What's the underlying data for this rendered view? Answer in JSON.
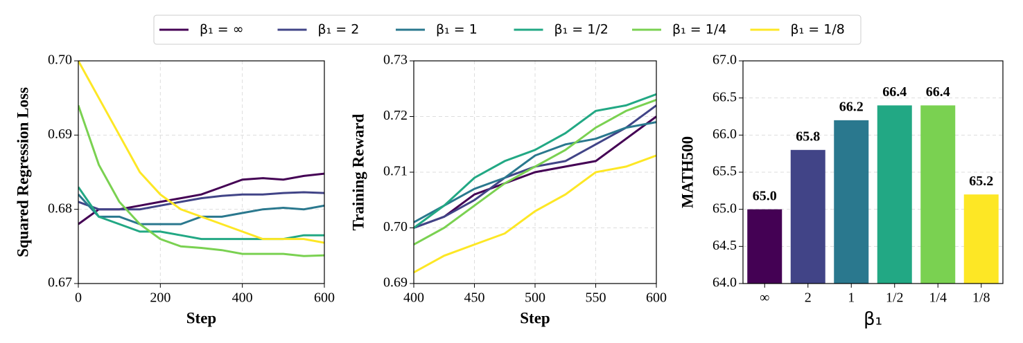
{
  "chart_data": [
    {
      "type": "line",
      "xlabel": "Step",
      "ylabel": "Squared Regression Loss",
      "grid": true,
      "legend": "top",
      "x": [
        0,
        50,
        100,
        150,
        200,
        250,
        300,
        350,
        400,
        450,
        500,
        550,
        600
      ],
      "xlim": [
        0,
        600
      ],
      "xticks": [
        0,
        200,
        400,
        600
      ],
      "ylim": [
        0.67,
        0.7
      ],
      "yticks": [
        0.67,
        0.68,
        0.69,
        {
          "value": 0.7,
          "label": "0.70"
        }
      ],
      "series": [
        {
          "name": "β₁ = ∞",
          "color": "#440154",
          "values": [
            0.678,
            0.68,
            0.68,
            0.6805,
            0.681,
            0.6815,
            0.682,
            0.683,
            0.684,
            0.6842,
            0.684,
            0.6845,
            0.6848
          ]
        },
        {
          "name": "β₁ = 2",
          "color": "#414487",
          "values": [
            0.681,
            0.68,
            0.68,
            0.68,
            0.6805,
            0.681,
            0.6815,
            0.6818,
            0.682,
            0.682,
            0.6822,
            0.6823,
            0.6822
          ]
        },
        {
          "name": "β₁ = 1",
          "color": "#2a788e",
          "values": [
            0.682,
            0.679,
            0.679,
            0.678,
            0.678,
            0.678,
            0.679,
            0.679,
            0.6795,
            0.68,
            0.6802,
            0.68,
            0.6805
          ]
        },
        {
          "name": "β₁ = 1/2",
          "color": "#22a884",
          "values": [
            0.683,
            0.679,
            0.678,
            0.677,
            0.677,
            0.6765,
            0.676,
            0.676,
            0.676,
            0.676,
            0.676,
            0.6765,
            0.6765
          ]
        },
        {
          "name": "β₁ = 1/4",
          "color": "#7ad151",
          "values": [
            0.694,
            0.686,
            0.681,
            0.678,
            0.676,
            0.675,
            0.6748,
            0.6745,
            0.674,
            0.674,
            0.674,
            0.6737,
            0.6738
          ]
        },
        {
          "name": "β₁ = 1/8",
          "color": "#fde725",
          "values": [
            0.7,
            0.695,
            0.69,
            0.685,
            0.682,
            0.68,
            0.679,
            0.678,
            0.677,
            0.676,
            0.676,
            0.676,
            0.6755
          ]
        }
      ]
    },
    {
      "type": "line",
      "xlabel": "Step",
      "ylabel": "Training Reward",
      "grid": true,
      "x": [
        400,
        425,
        450,
        475,
        500,
        525,
        550,
        575,
        600
      ],
      "xlim": [
        400,
        600
      ],
      "xticks": [
        400,
        450,
        500,
        550,
        600
      ],
      "ylim": [
        0.69,
        0.73
      ],
      "yticks": [
        0.69,
        {
          "value": 0.7,
          "label": "0.70"
        },
        0.71,
        0.72,
        0.73
      ],
      "series": [
        {
          "color": "#440154",
          "values": [
            0.7,
            0.702,
            0.706,
            0.708,
            0.71,
            0.711,
            0.712,
            0.716,
            0.72
          ]
        },
        {
          "color": "#414487",
          "values": [
            0.7,
            0.702,
            0.705,
            0.709,
            0.711,
            0.712,
            0.715,
            0.718,
            0.722
          ]
        },
        {
          "color": "#2a788e",
          "values": [
            0.701,
            0.704,
            0.707,
            0.709,
            0.713,
            0.715,
            0.716,
            0.718,
            0.719
          ]
        },
        {
          "color": "#22a884",
          "values": [
            0.7,
            0.704,
            0.709,
            0.712,
            0.714,
            0.717,
            0.721,
            0.722,
            0.724
          ]
        },
        {
          "color": "#7ad151",
          "values": [
            0.697,
            0.7,
            0.704,
            0.708,
            0.711,
            0.714,
            0.718,
            0.721,
            0.723
          ]
        },
        {
          "color": "#fde725",
          "values": [
            0.692,
            0.695,
            0.697,
            0.699,
            0.703,
            0.706,
            0.71,
            0.711,
            0.713
          ]
        }
      ]
    },
    {
      "type": "bar",
      "xlabel": "β₁",
      "ylabel": "MATH500",
      "grid": true,
      "categories": [
        "∞",
        "2",
        "1",
        "1/2",
        "1/4",
        "1/8"
      ],
      "values": [
        65.0,
        65.8,
        66.2,
        66.4,
        66.4,
        65.2
      ],
      "value_labels": [
        "65.0",
        "65.8",
        "66.2",
        "66.4",
        "66.4",
        "65.2"
      ],
      "colors": [
        "#440154",
        "#414487",
        "#2a788e",
        "#22a884",
        "#7ad151",
        "#fde725"
      ],
      "ylim": [
        64,
        67
      ],
      "yticks": [
        {
          "value": 64,
          "label": "64.0"
        },
        64.5,
        {
          "value": 65,
          "label": "65.0"
        },
        65.5,
        {
          "value": 66,
          "label": "66.0"
        },
        66.5,
        {
          "value": 67,
          "label": "67.0"
        }
      ]
    }
  ]
}
